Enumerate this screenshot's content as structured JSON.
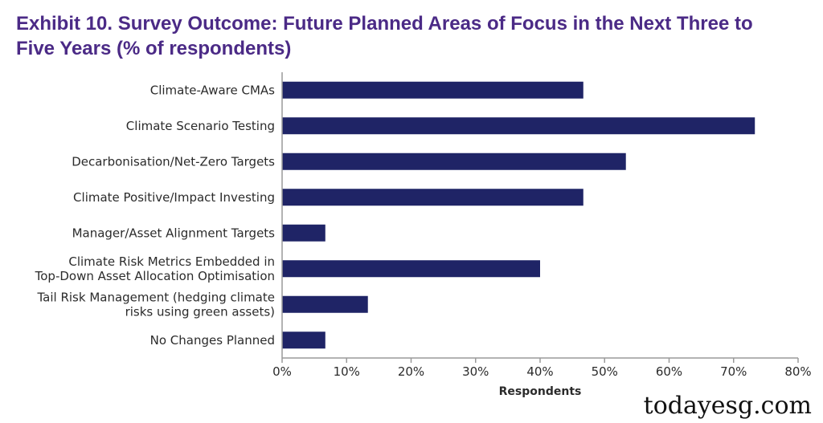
{
  "header": {
    "title": "Exhibit 10. Survey Outcome: Future Planned Areas of Focus in the Next Three to Five Years (% of respondents)"
  },
  "chart_data": {
    "type": "bar",
    "orientation": "horizontal",
    "title": "Exhibit 10. Survey Outcome: Future Planned Areas of Focus in the Next Three to Five Years (% of respondents)",
    "categories": [
      [
        "Climate-Aware CMAs"
      ],
      [
        "Climate Scenario Testing"
      ],
      [
        "Decarbonisation/Net-Zero Targets"
      ],
      [
        "Climate Positive/Impact Investing"
      ],
      [
        "Manager/Asset Alignment Targets"
      ],
      [
        "Climate Risk Metrics Embedded in",
        "Top-Down Asset Allocation Optimisation"
      ],
      [
        "Tail Risk Management (hedging climate",
        "risks using green assets)"
      ],
      [
        "No Changes Planned"
      ]
    ],
    "values": [
      46.7,
      73.3,
      53.3,
      46.7,
      6.7,
      40.0,
      13.3,
      6.7
    ],
    "xlabel": "Respondents",
    "ylabel": "",
    "xlim": [
      0,
      80
    ],
    "xticks": [
      0,
      10,
      20,
      30,
      40,
      50,
      60,
      70,
      80
    ],
    "tick_suffix": "%",
    "bar_color": "#1f2466",
    "axis_color": "#9a9a9a",
    "grid": false
  },
  "watermark": "todayesg.com"
}
